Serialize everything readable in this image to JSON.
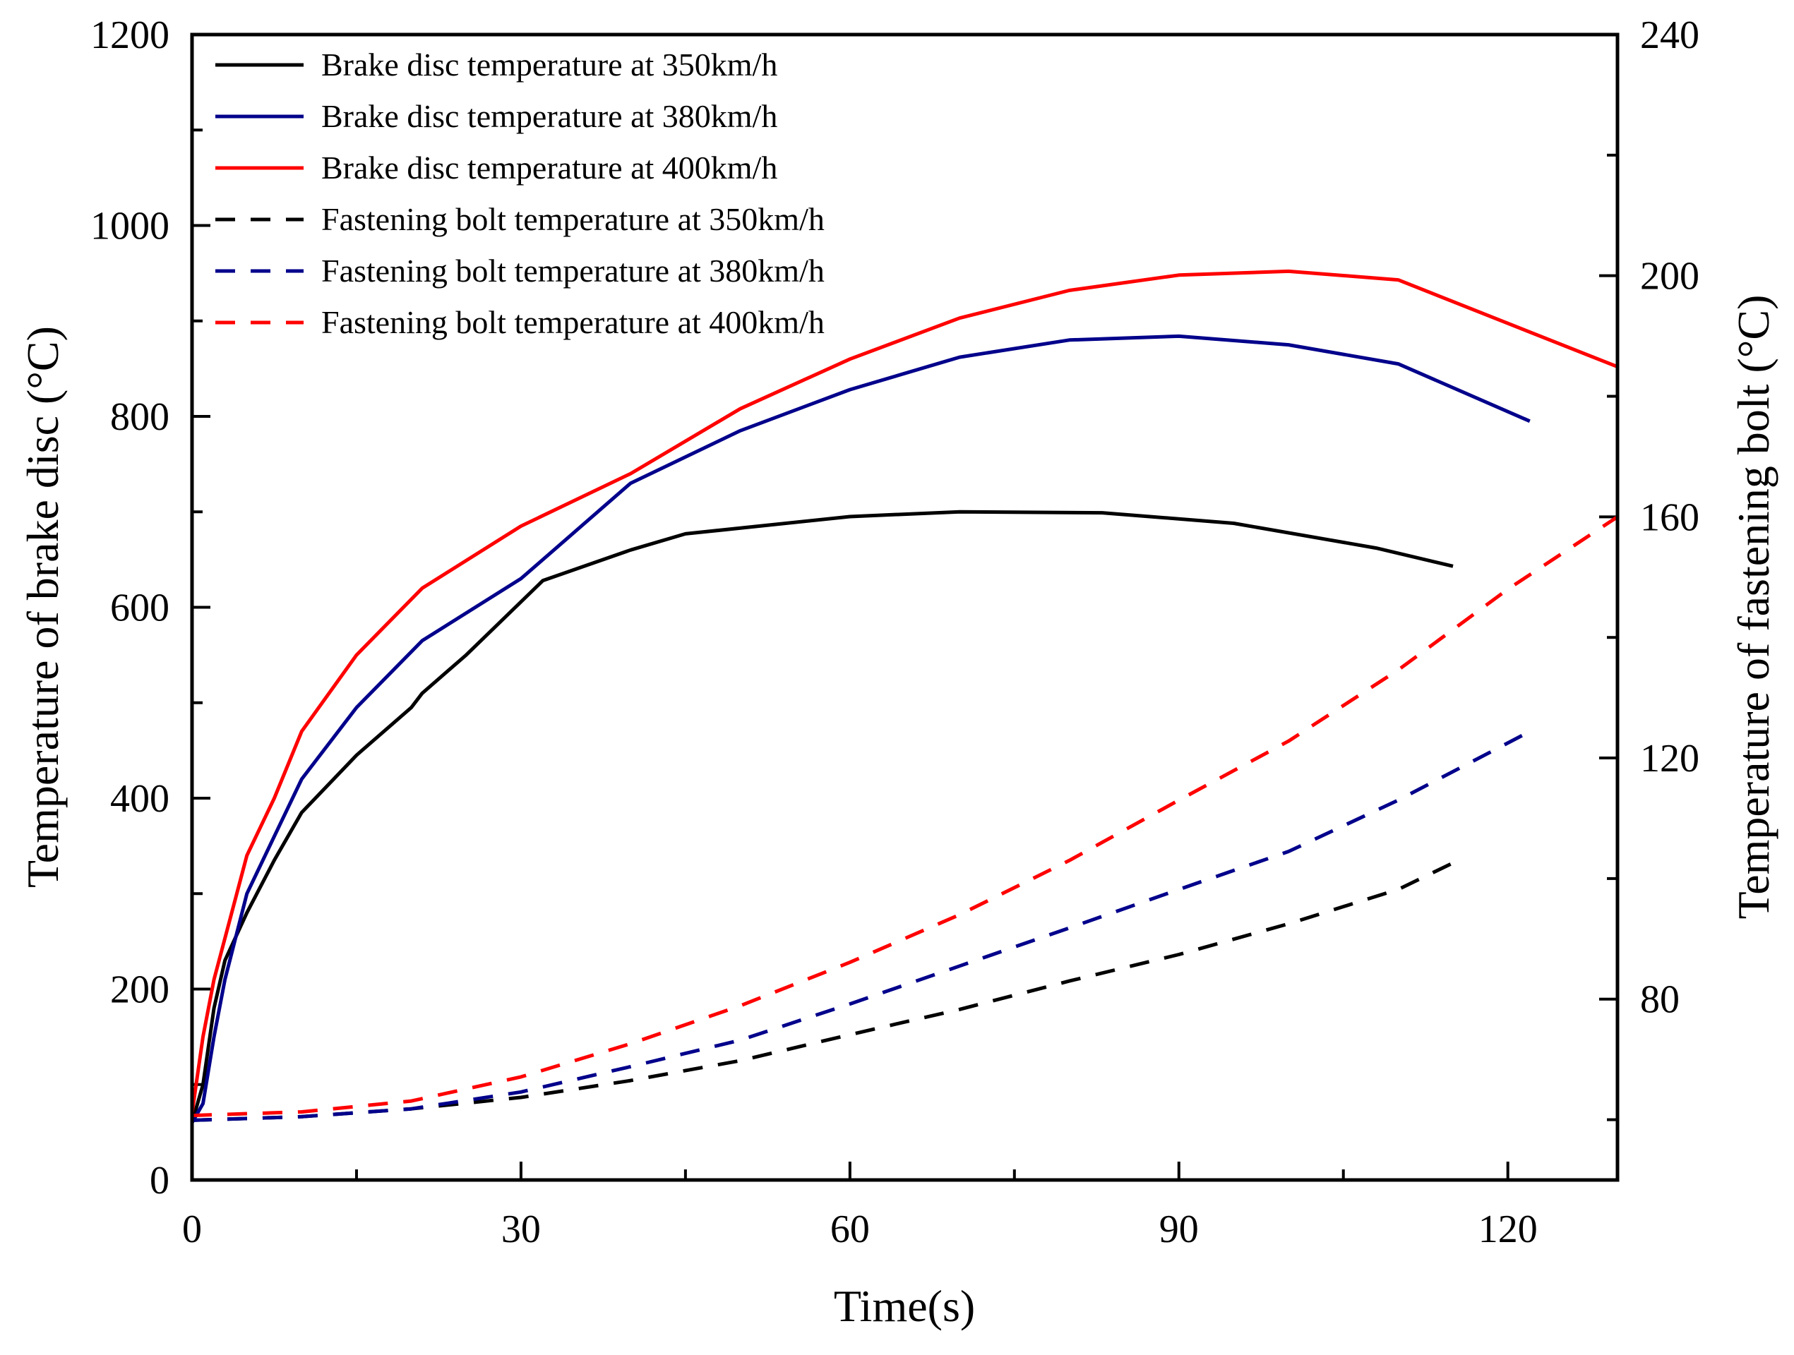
{
  "chart_data": {
    "type": "line",
    "title": "",
    "xlabel": "Time(s)",
    "ylabel": "Temperature of brake disc (°C)",
    "y2label": "Temperature of fastening bolt (°C)",
    "xlim": [
      0,
      130
    ],
    "ylim": [
      0,
      1200
    ],
    "y2lim": [
      50,
      240
    ],
    "xticks": [
      0,
      30,
      60,
      90,
      120
    ],
    "yticks": [
      0,
      200,
      400,
      600,
      800,
      1000,
      1200
    ],
    "y2ticks": [
      80,
      120,
      160,
      200,
      240
    ],
    "grid": false,
    "legend_position": "top-left",
    "series": [
      {
        "name": "Brake disc temperature at 350km/h",
        "axis": "left",
        "style": "solid",
        "color": "#000000",
        "x": [
          0,
          1,
          2,
          3,
          5,
          7.5,
          10,
          15,
          20,
          21,
          25,
          32,
          40,
          45,
          60,
          70,
          83,
          95,
          108,
          115
        ],
        "y": [
          60,
          100,
          180,
          230,
          280,
          335,
          385,
          445,
          495,
          510,
          550,
          628,
          660,
          677,
          695,
          700,
          699,
          688,
          662,
          643
        ]
      },
      {
        "name": "Brake disc temperature at 380km/h",
        "axis": "left",
        "style": "solid",
        "color": "#00008B",
        "x": [
          0,
          1,
          2,
          3,
          5,
          7.5,
          10,
          15,
          21,
          30,
          35,
          40,
          50,
          60,
          70,
          80,
          90,
          100,
          110,
          122
        ],
        "y": [
          60,
          80,
          150,
          210,
          300,
          360,
          420,
          495,
          565,
          630,
          680,
          730,
          785,
          828,
          862,
          880,
          884,
          875,
          855,
          795
        ]
      },
      {
        "name": "Brake disc temperature at 400km/h",
        "axis": "left",
        "style": "solid",
        "color": "#FF0000",
        "x": [
          0,
          1,
          2,
          5,
          7.5,
          10,
          15,
          21,
          30,
          40,
          50,
          60,
          70,
          80,
          90,
          100,
          110,
          130
        ],
        "y": [
          70,
          150,
          210,
          340,
          400,
          470,
          550,
          620,
          685,
          740,
          808,
          860,
          903,
          932,
          948,
          952,
          943,
          852
        ]
      },
      {
        "name": "Fastening bolt temperature at 350km/h",
        "axis": "right",
        "style": "dashed",
        "color": "#000000",
        "x": [
          0,
          10,
          20,
          30,
          40,
          50,
          60,
          70,
          80,
          90,
          100,
          110,
          115
        ],
        "y": [
          59.9,
          60.5,
          61.8,
          63.7,
          66.5,
          69.8,
          74.1,
          78.3,
          83,
          87.4,
          92.5,
          98.2,
          102.6
        ]
      },
      {
        "name": "Fastening bolt temperature at 380km/h",
        "axis": "right",
        "style": "dashed",
        "color": "#00008B",
        "x": [
          0,
          10,
          20,
          30,
          40,
          50,
          60,
          70,
          80,
          90,
          100,
          110,
          122
        ],
        "y": [
          59.9,
          60.5,
          61.8,
          64.6,
          68.8,
          73.2,
          79.2,
          85.5,
          91.8,
          98.2,
          104.5,
          113,
          124.4
        ]
      },
      {
        "name": "Fastening bolt temperature at 400km/h",
        "axis": "right",
        "style": "dashed",
        "color": "#FF0000",
        "x": [
          0,
          10,
          20,
          30,
          40,
          50,
          60,
          70,
          80,
          90,
          100,
          110,
          120,
          130
        ],
        "y": [
          60.7,
          61.3,
          63.1,
          67.1,
          72.6,
          78.9,
          86.1,
          94,
          103,
          113,
          122.8,
          134.6,
          148,
          160
        ]
      }
    ]
  }
}
